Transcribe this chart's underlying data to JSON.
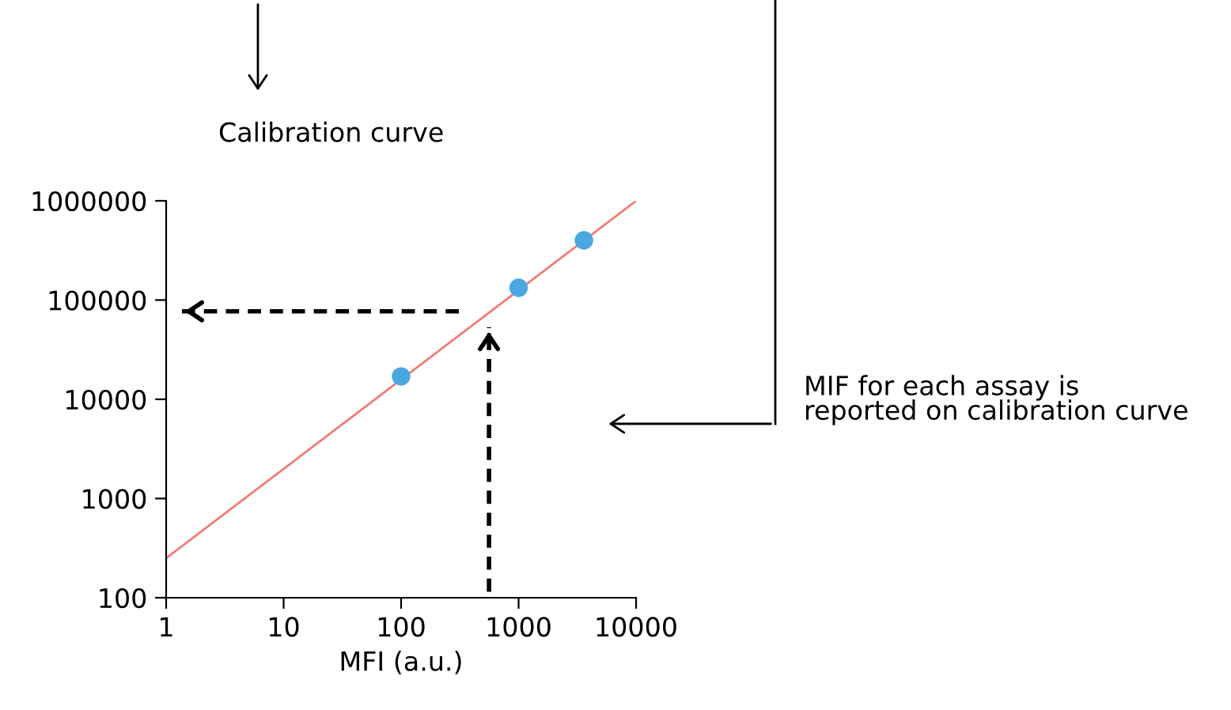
{
  "chart_data": {
    "type": "scatter",
    "title": "Calibration curve",
    "xlabel": "MFI (a.u.)",
    "annotations": [
      "MIF for each assay is\nreported on calibration curve"
    ],
    "log": "xy",
    "xlim": [
      1,
      10000
    ],
    "ylim": [
      100,
      1000000
    ],
    "xticks": [
      1,
      10,
      100,
      1000,
      10000
    ],
    "yticks": [
      100,
      1000,
      10000,
      100000,
      1000000
    ],
    "grid": false,
    "series": [
      {
        "type": "line",
        "color": "#f07c74",
        "x": [
          1,
          10000
        ],
        "values": [
          250,
          1000000
        ]
      },
      {
        "marker": "circle",
        "color": "#4aa8e0",
        "x": [
          100,
          1000,
          3600
        ],
        "values": [
          17000,
          133000,
          400000
        ]
      },
      {
        "type": "line",
        "line_style": "dashed",
        "color": "#000000",
        "x": [
          310,
          1.32
        ],
        "values": [
          77000,
          77000
        ]
      },
      {
        "type": "line",
        "line_style": "dashed",
        "color": "#000000",
        "x": [
          560,
          560
        ],
        "values": [
          115,
          53000
        ]
      }
    ]
  }
}
